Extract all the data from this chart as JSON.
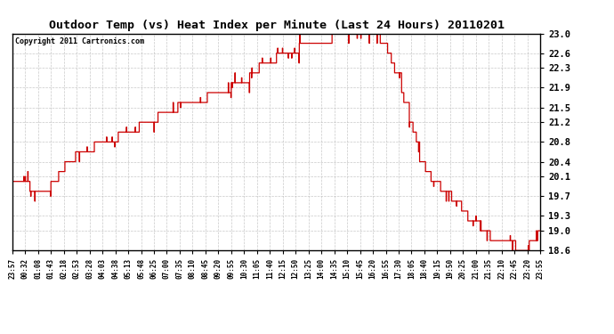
{
  "title": "Outdoor Temp (vs) Heat Index per Minute (Last 24 Hours) 20110201",
  "copyright": "Copyright 2011 Cartronics.com",
  "line_color": "#cc0000",
  "background_color": "#ffffff",
  "grid_color": "#bbbbbb",
  "ylim": [
    18.6,
    23.0
  ],
  "yticks": [
    18.6,
    19.0,
    19.3,
    19.7,
    20.1,
    20.4,
    20.8,
    21.2,
    21.5,
    21.9,
    22.3,
    22.6,
    23.0
  ],
  "xtick_labels": [
    "23:57",
    "00:32",
    "01:08",
    "01:43",
    "02:18",
    "02:53",
    "03:28",
    "04:03",
    "04:38",
    "05:13",
    "05:48",
    "06:25",
    "07:00",
    "07:35",
    "08:10",
    "08:45",
    "09:20",
    "09:55",
    "10:30",
    "11:05",
    "11:40",
    "12:15",
    "12:50",
    "13:25",
    "14:00",
    "14:35",
    "15:10",
    "15:45",
    "16:20",
    "16:55",
    "17:30",
    "18:05",
    "18:40",
    "19:15",
    "19:50",
    "20:25",
    "21:00",
    "21:35",
    "22:10",
    "22:45",
    "23:20",
    "23:55"
  ],
  "n_points": 1436,
  "key_x": [
    0,
    20,
    60,
    90,
    110,
    130,
    160,
    190,
    220,
    250,
    280,
    310,
    340,
    370,
    400,
    450,
    510,
    570,
    630,
    700,
    760,
    820,
    880,
    920,
    950,
    970,
    990,
    1010,
    1030,
    1050,
    1065,
    1080,
    1095,
    1110,
    1125,
    1145,
    1165,
    1185,
    1210,
    1235,
    1260,
    1285,
    1310,
    1330,
    1350,
    1370,
    1390,
    1405,
    1420,
    1435
  ],
  "key_y": [
    20.1,
    20.05,
    19.8,
    19.85,
    20.0,
    20.3,
    20.55,
    20.6,
    20.75,
    20.85,
    20.85,
    21.05,
    21.1,
    21.25,
    21.35,
    21.55,
    21.65,
    21.85,
    22.1,
    22.45,
    22.65,
    22.8,
    22.95,
    23.0,
    23.05,
    23.05,
    22.95,
    22.85,
    22.5,
    22.0,
    21.6,
    21.2,
    20.8,
    20.4,
    20.15,
    20.0,
    19.85,
    19.7,
    19.5,
    19.3,
    19.1,
    18.95,
    18.85,
    18.8,
    18.75,
    18.65,
    18.65,
    18.7,
    18.95,
    19.0
  ]
}
